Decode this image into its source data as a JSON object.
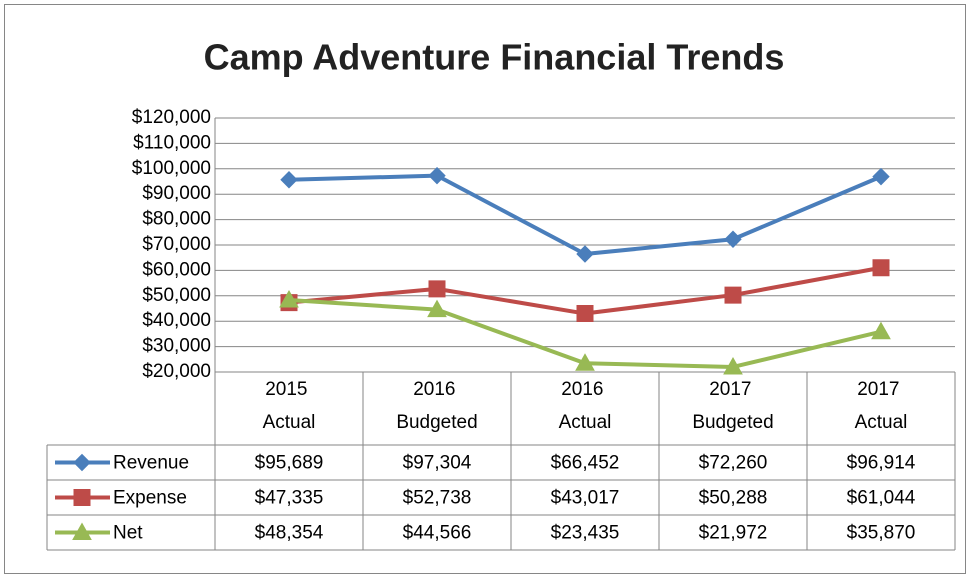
{
  "chart_data": {
    "type": "line",
    "title": "Camp Adventure Financial Trends",
    "categories": [
      "2015 Actual",
      "2016 Budgeted",
      "2016 Actual",
      "2017 Budgeted",
      "2017 Actual"
    ],
    "series": [
      {
        "name": "Revenue",
        "color": "#4a7ebb",
        "marker": "diamond",
        "values": [
          95689,
          97304,
          66452,
          72260,
          96914
        ],
        "value_labels": [
          "$95,689",
          "$97,304",
          "$66,452",
          "$72,260",
          "$96,914"
        ]
      },
      {
        "name": "Expense",
        "color": "#be4b48",
        "marker": "square",
        "values": [
          47335,
          52738,
          43017,
          50288,
          61044
        ],
        "value_labels": [
          "$47,335",
          "$52,738",
          "$43,017",
          "$50,288",
          "$61,044"
        ]
      },
      {
        "name": "Net",
        "color": "#98b954",
        "marker": "triangle",
        "values": [
          48354,
          44566,
          23435,
          21972,
          35870
        ],
        "value_labels": [
          "$48,354",
          "$44,566",
          "$23,435",
          "$21,972",
          "$35,870"
        ]
      }
    ],
    "ylim": [
      20000,
      120000
    ],
    "yticks": [
      {
        "value": 20000,
        "label": "$20,000"
      },
      {
        "value": 30000,
        "label": "$30,000"
      },
      {
        "value": 40000,
        "label": "$40,000"
      },
      {
        "value": 50000,
        "label": "$50,000"
      },
      {
        "value": 60000,
        "label": "$60,000"
      },
      {
        "value": 70000,
        "label": "$70,000"
      },
      {
        "value": 80000,
        "label": "$80,000"
      },
      {
        "value": 90000,
        "label": "$90,000"
      },
      {
        "value": 100000,
        "label": "$100,000"
      },
      {
        "value": 110000,
        "label": "$110,000"
      },
      {
        "value": 120000,
        "label": "$120,000"
      }
    ],
    "grid": true,
    "data_table": true
  }
}
